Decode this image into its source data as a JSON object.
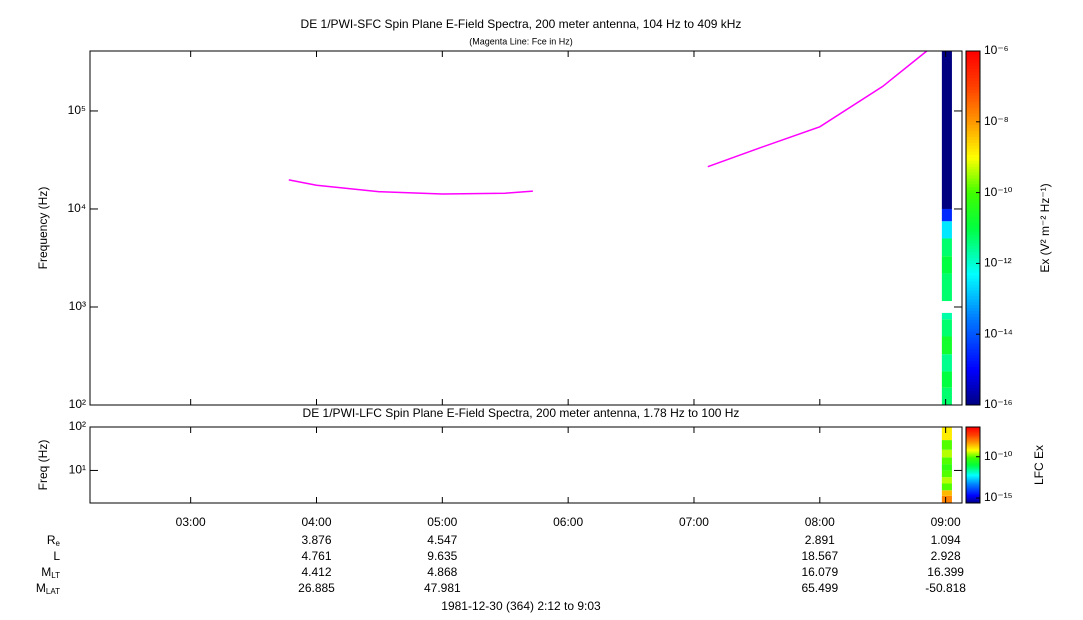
{
  "chart_data": [
    {
      "type": "spectrogram",
      "title": "DE 1/PWI-SFC  Spin Plane E-Field Spectra, 200 meter antenna, 104 Hz to 409 kHz",
      "subtitle": "(Magenta Line: Fce in Hz)",
      "y_label": "Frequency (Hz)",
      "log_y": true,
      "xlim": [
        2.2,
        9.13
      ],
      "xticks": [
        3,
        4,
        5,
        6,
        7,
        8,
        9
      ],
      "ylim": [
        100,
        409000
      ],
      "yticks": [
        {
          "value": 100,
          "label": "10²"
        },
        {
          "value": 1000,
          "label": "10³"
        },
        {
          "value": 10000,
          "label": "10⁴"
        },
        {
          "value": 100000,
          "label": "10⁵"
        }
      ],
      "line": {
        "color": "#ff00ff",
        "x": [
          3.78,
          4.0,
          4.5,
          5.0,
          5.5,
          5.72,
          null,
          7.11,
          7.5,
          8.0,
          8.5,
          8.85
        ],
        "values": [
          19800,
          17500,
          15000,
          14200,
          14500,
          15200,
          null,
          27000,
          41000,
          69000,
          178000,
          409000
        ]
      },
      "spectrogram": {
        "x_range": [
          8.97,
          9.05
        ],
        "freq_edges": [
          100,
          150,
          220,
          330,
          500,
          750,
          870,
          1150,
          2200,
          3300,
          5000,
          7500,
          10000,
          409000
        ],
        "values": [
          5e-12,
          1e-11,
          3e-12,
          2e-11,
          5e-12,
          2e-12,
          null,
          5e-12,
          1e-11,
          5e-12,
          3e-13,
          3e-15,
          1e-16
        ]
      },
      "colorbar": {
        "label": "Ex (V² m⁻² Hz⁻¹)",
        "clim": [
          1e-16,
          1e-06
        ],
        "ticks": [
          {
            "value": 1e-16,
            "label": "10⁻¹⁶"
          },
          {
            "value": 1e-14,
            "label": "10⁻¹⁴"
          },
          {
            "value": 1e-12,
            "label": "10⁻¹²"
          },
          {
            "value": 1e-10,
            "label": "10⁻¹⁰"
          },
          {
            "value": 1e-08,
            "label": "10⁻⁸"
          },
          {
            "value": 1e-06,
            "label": "10⁻⁶"
          }
        ]
      }
    },
    {
      "type": "spectrogram",
      "title": "DE 1/PWI-LFC  Spin Plane E-Field Spectra, 200 meter antenna, 1.78 Hz to 100 Hz",
      "y_label": "Freq (Hz)",
      "log_y": true,
      "xlim": [
        2.2,
        9.13
      ],
      "xticks": [
        {
          "value": 3,
          "label": "03:00"
        },
        {
          "value": 4,
          "label": "04:00"
        },
        {
          "value": 5,
          "label": "05:00"
        },
        {
          "value": 6,
          "label": "06:00"
        },
        {
          "value": 7,
          "label": "07:00"
        },
        {
          "value": 8,
          "label": "08:00"
        },
        {
          "value": 9,
          "label": "09:00"
        }
      ],
      "ylim": [
        1.78,
        100
      ],
      "yticks": [
        {
          "value": 10,
          "label": "10¹"
        },
        {
          "value": 100,
          "label": "10²"
        }
      ],
      "spectrogram": {
        "x_range": [
          8.97,
          9.05
        ],
        "freq_edges": [
          1.78,
          2.6,
          3.5,
          5,
          7,
          10,
          14,
          20,
          30,
          50,
          100
        ],
        "values": [
          1e-08,
          3e-09,
          1e-10,
          3e-10,
          1e-10,
          5e-11,
          1e-10,
          3e-10,
          1e-10,
          1e-09
        ]
      },
      "colorbar": {
        "label": "LFC Ex",
        "clim": [
          2.5e-16,
          4e-07
        ],
        "ticks": [
          {
            "value": 1e-15,
            "label": "10⁻¹⁵"
          },
          {
            "value": 1e-10,
            "label": "10⁻¹⁰"
          }
        ]
      }
    }
  ],
  "ephemeris": {
    "x": [
      4,
      5,
      8,
      9
    ],
    "rows": [
      {
        "label": "R",
        "sub": "e",
        "values": [
          3.876,
          4.547,
          2.891,
          1.094
        ]
      },
      {
        "label": "L",
        "values": [
          4.761,
          9.635,
          18.567,
          2.928
        ]
      },
      {
        "label": "M",
        "sub": "LT",
        "values": [
          4.412,
          4.868,
          16.079,
          16.399
        ]
      },
      {
        "label": "M",
        "sub": "LAT",
        "values": [
          26.885,
          47.981,
          65.499,
          -50.818
        ]
      }
    ]
  },
  "footer": "1981-12-30 (364) 2:12 to 9:03"
}
